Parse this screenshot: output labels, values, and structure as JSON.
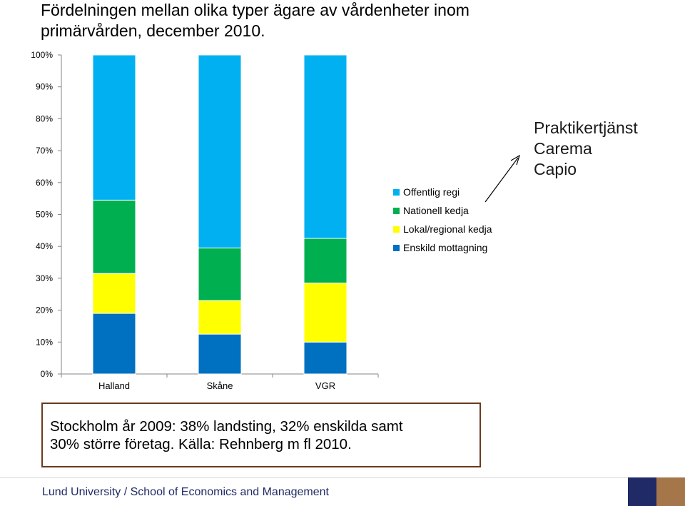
{
  "page": {
    "title_line1": "Fördelningen mellan olika typer ägare av vårdenheter inom",
    "title_line2": "primärvården, december 2010."
  },
  "callout": {
    "lines": [
      "Praktikertjänst",
      "Carema",
      "Capio"
    ]
  },
  "note": {
    "line1": "Stockholm år 2009: 38% landsting, 32% enskilda samt",
    "line2": "30% större företag. Källa: Rehnberg m fl 2010."
  },
  "footer": {
    "text": "Lund University / School of Economics and Management",
    "colors": {
      "navy": "#1f2a66",
      "bronze": "#a6764b"
    }
  },
  "chart_data": {
    "type": "bar",
    "stacked": true,
    "title": "",
    "xlabel": "",
    "ylabel": "",
    "categories": [
      "Halland",
      "Skåne",
      "VGR"
    ],
    "ylim": [
      0,
      100
    ],
    "yticks": [
      "0%",
      "10%",
      "20%",
      "30%",
      "40%",
      "50%",
      "60%",
      "70%",
      "80%",
      "90%",
      "100%"
    ],
    "grid": false,
    "legend_position": "right",
    "series": [
      {
        "name": "Enskild mottagning",
        "color": "#0070c0",
        "values": [
          19,
          12.5,
          10
        ]
      },
      {
        "name": "Lokal/regional kedja",
        "color": "#ffff00",
        "values": [
          12.5,
          10.5,
          18.5
        ]
      },
      {
        "name": "Nationell kedja",
        "color": "#00b050",
        "values": [
          23,
          16.5,
          14
        ]
      },
      {
        "name": "Offentlig regi",
        "color": "#00b0f0",
        "values": [
          45.5,
          60.5,
          57.5
        ]
      }
    ]
  }
}
